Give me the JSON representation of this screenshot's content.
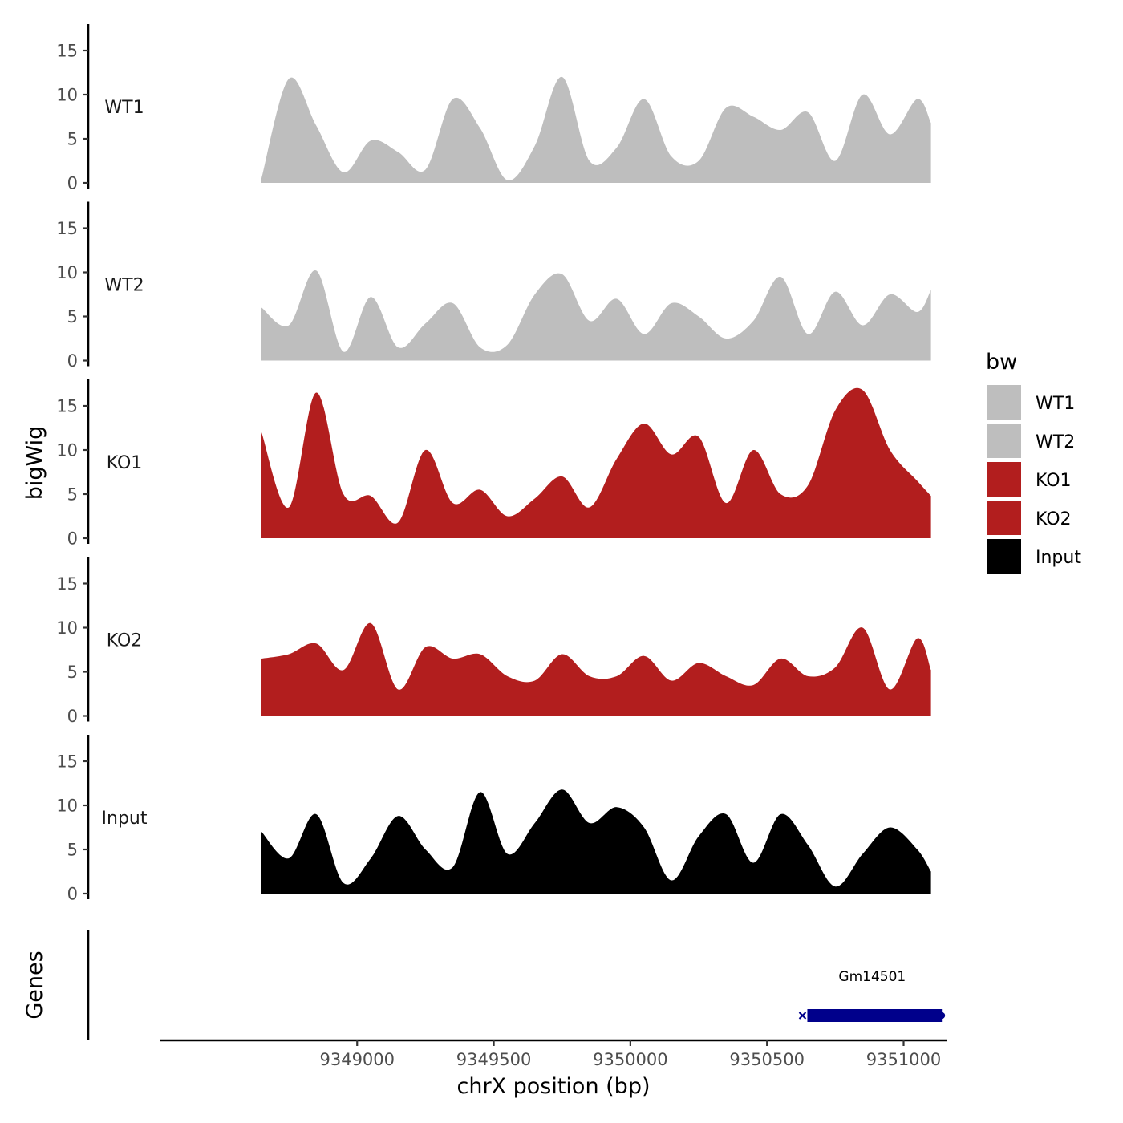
{
  "chart_data": {
    "type": "area",
    "title": "",
    "xlabel": "chrX position (bp)",
    "ylabel": "bigWig",
    "genes_label": "Genes",
    "xlim": [
      9348280,
      9351160
    ],
    "x_ticks": [
      9349000,
      9349500,
      9350000,
      9350500,
      9351000
    ],
    "x_tick_labels": [
      "9349000",
      "9349500",
      "9350000",
      "9350500",
      "9351000"
    ],
    "ylim": [
      0,
      17.5
    ],
    "y_ticks": [
      0,
      5,
      10,
      15
    ],
    "y_tick_labels": [
      "0",
      "5",
      "10",
      "15"
    ],
    "grid": false,
    "x": [
      9348650,
      9348750,
      9348850,
      9348950,
      9349050,
      9349150,
      9349250,
      9349350,
      9349450,
      9349550,
      9349650,
      9349750,
      9349850,
      9349950,
      9350050,
      9350150,
      9350250,
      9350350,
      9350450,
      9350550,
      9350650,
      9350750,
      9350850,
      9350950,
      9351050,
      9351100
    ],
    "series": [
      {
        "name": "WT1",
        "color": "#bebebe",
        "values": [
          0.5,
          11.8,
          6.5,
          1.2,
          4.8,
          3.5,
          1.5,
          9.5,
          6.2,
          0.3,
          4.2,
          12.0,
          2.5,
          4.0,
          9.5,
          3.0,
          2.5,
          8.5,
          7.5,
          6.0,
          8.0,
          2.5,
          10.0,
          5.5,
          9.5,
          6.8
        ]
      },
      {
        "name": "WT2",
        "color": "#bebebe",
        "values": [
          6.0,
          4.0,
          10.2,
          1.0,
          7.2,
          1.5,
          4.2,
          6.5,
          1.5,
          1.8,
          7.5,
          9.8,
          4.5,
          7.0,
          3.0,
          6.5,
          5.0,
          2.5,
          4.5,
          9.5,
          3.0,
          7.8,
          4.0,
          7.5,
          5.5,
          8.0
        ]
      },
      {
        "name": "KO1",
        "color": "#b21e1e",
        "values": [
          12.0,
          3.5,
          16.5,
          5.0,
          4.8,
          1.8,
          10.0,
          4.0,
          5.5,
          2.5,
          4.5,
          7.0,
          3.5,
          9.0,
          13.0,
          9.5,
          11.5,
          4.0,
          10.0,
          5.0,
          6.0,
          14.5,
          16.8,
          10.0,
          6.5,
          4.8
        ]
      },
      {
        "name": "KO2",
        "color": "#b21e1e",
        "values": [
          6.5,
          7.0,
          8.2,
          5.2,
          10.5,
          3.0,
          7.8,
          6.5,
          7.0,
          4.5,
          4.0,
          7.0,
          4.5,
          4.5,
          6.8,
          4.0,
          6.0,
          4.5,
          3.5,
          6.5,
          4.5,
          5.5,
          10.0,
          3.0,
          8.8,
          5.2
        ]
      },
      {
        "name": "Input",
        "color": "#000000",
        "values": [
          7.0,
          4.0,
          9.0,
          1.2,
          4.0,
          8.8,
          5.0,
          3.0,
          11.5,
          4.5,
          8.0,
          11.8,
          8.0,
          9.8,
          7.5,
          1.5,
          6.5,
          9.0,
          3.5,
          9.0,
          5.5,
          0.8,
          4.5,
          7.5,
          5.0,
          2.5
        ]
      }
    ],
    "legend": {
      "title": "bw",
      "position": "right",
      "entries": [
        {
          "label": "WT1",
          "color": "#bebebe"
        },
        {
          "label": "WT2",
          "color": "#bebebe"
        },
        {
          "label": "KO1",
          "color": "#b21e1e"
        },
        {
          "label": "KO2",
          "color": "#b21e1e"
        },
        {
          "label": "Input",
          "color": "#000000"
        }
      ]
    },
    "genes": [
      {
        "name": "Gm14501",
        "start": 9350630,
        "end": 9351140,
        "color": "#00008b"
      }
    ]
  }
}
